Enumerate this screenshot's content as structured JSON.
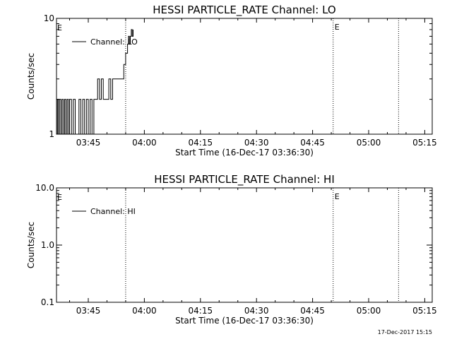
{
  "chart_data": [
    {
      "type": "line",
      "title": "HESSI PARTICLE_RATE Channel: LO",
      "xlabel": "Start Time (16-Dec-17 03:36:30)",
      "ylabel": "Counts/sec",
      "y_scale": "log",
      "ylim": [
        1,
        10
      ],
      "yticks": [
        "1",
        "10"
      ],
      "xlim": [
        "03:36:30",
        "05:17:00"
      ],
      "xticks": [
        "03:45",
        "04:00",
        "04:15",
        "04:30",
        "04:45",
        "05:00",
        "05:15"
      ],
      "grid": false,
      "legend": "top-left",
      "series": [
        {
          "name": "Channel: LO",
          "points": [
            [
              "03:36:30",
              1
            ],
            [
              "03:36:45",
              2
            ],
            [
              "03:37:00",
              1
            ],
            [
              "03:37:20",
              2
            ],
            [
              "03:37:40",
              1
            ],
            [
              "03:38:00",
              2
            ],
            [
              "03:38:20",
              1
            ],
            [
              "03:38:40",
              2
            ],
            [
              "03:39:00",
              1
            ],
            [
              "03:39:20",
              2
            ],
            [
              "03:39:40",
              1
            ],
            [
              "03:40:00",
              2
            ],
            [
              "03:40:30",
              1
            ],
            [
              "03:41:00",
              2
            ],
            [
              "03:41:30",
              1
            ],
            [
              "03:42:00",
              1
            ],
            [
              "03:42:30",
              2
            ],
            [
              "03:43:00",
              1
            ],
            [
              "03:43:30",
              2
            ],
            [
              "03:44:00",
              1
            ],
            [
              "03:44:30",
              2
            ],
            [
              "03:45:00",
              1
            ],
            [
              "03:45:30",
              2
            ],
            [
              "03:46:00",
              1
            ],
            [
              "03:46:30",
              2
            ],
            [
              "03:47:00",
              2
            ],
            [
              "03:47:30",
              3
            ],
            [
              "03:48:00",
              2
            ],
            [
              "03:48:30",
              3
            ],
            [
              "03:49:00",
              2
            ],
            [
              "03:49:30",
              2
            ],
            [
              "03:50:00",
              2
            ],
            [
              "03:50:30",
              3
            ],
            [
              "03:51:00",
              2
            ],
            [
              "03:51:30",
              3
            ],
            [
              "03:52:00",
              3
            ],
            [
              "03:52:30",
              3
            ],
            [
              "03:53:00",
              3
            ],
            [
              "03:53:30",
              3
            ],
            [
              "03:54:00",
              3
            ],
            [
              "03:54:30",
              4
            ],
            [
              "03:55:00",
              5
            ],
            [
              "03:55:30",
              6
            ],
            [
              "03:55:45",
              7
            ],
            [
              "03:56:00",
              6
            ],
            [
              "03:56:15",
              7
            ],
            [
              "03:56:30",
              8
            ],
            [
              "03:56:45",
              7
            ],
            [
              "03:57:00",
              8
            ]
          ]
        }
      ],
      "vlines": [
        {
          "x": "03:55:00",
          "label": ""
        },
        {
          "x": "04:50:30",
          "label": "E"
        },
        {
          "x": "05:08:00",
          "label": ""
        }
      ],
      "edge_label": "E"
    },
    {
      "type": "line",
      "title": "HESSI PARTICLE_RATE Channel: HI",
      "xlabel": "Start Time (16-Dec-17 03:36:30)",
      "ylabel": "Counts/sec",
      "y_scale": "log",
      "ylim": [
        0.1,
        10
      ],
      "yticks": [
        "0.1",
        "1.0",
        "10.0"
      ],
      "xlim": [
        "03:36:30",
        "05:17:00"
      ],
      "xticks": [
        "03:45",
        "04:00",
        "04:15",
        "04:30",
        "04:45",
        "05:00",
        "05:15"
      ],
      "grid": false,
      "legend": "top-left",
      "series": [
        {
          "name": "Channel: HI",
          "points": []
        }
      ],
      "vlines": [
        {
          "x": "03:55:00",
          "label": ""
        },
        {
          "x": "04:50:30",
          "label": "E"
        },
        {
          "x": "05:08:00",
          "label": ""
        }
      ],
      "edge_label": "E"
    }
  ],
  "footer": {
    "timestamp": "17-Dec-2017 15:15"
  }
}
